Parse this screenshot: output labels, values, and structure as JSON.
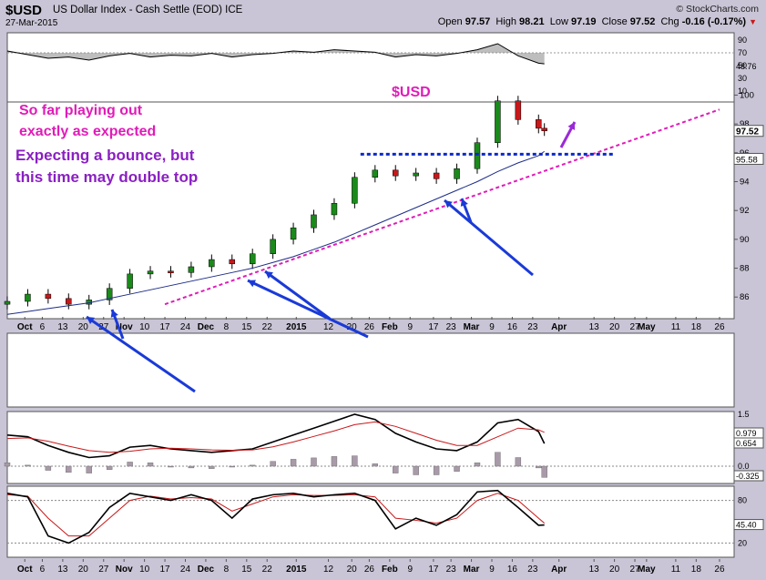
{
  "header": {
    "symbol": "$USD",
    "description": "US Dollar Index - Cash Settle (EOD) ICE",
    "date": "27-Mar-2015",
    "brand": "© StockCharts.com",
    "open_label": "Open",
    "open": "97.57",
    "high_label": "High",
    "high": "98.21",
    "low_label": "Low",
    "low": "97.19",
    "close_label": "Close",
    "close": "97.52",
    "chg_label": "Chg",
    "chg": "-0.16 (-0.17%)"
  },
  "annotations": {
    "title": "$USD",
    "line1": "So far playing out",
    "line2": "exactly as expected",
    "line3": "Expecting a bounce, but",
    "line4": "this time may double top"
  },
  "colors": {
    "background": "#c9c5d6",
    "panel": "#ffffff",
    "candle_up": "#1a8a1a",
    "candle_down": "#c8181a",
    "ma": "#1c2c88",
    "trendline": "#e01cb8",
    "support": "#0a28c8",
    "arrows": "#1a3ad8",
    "up_arrow": "#9a2ad8",
    "macd": "#000000",
    "signal": "#c8181a",
    "histogram": "#a89aa8"
  },
  "chart_data": [
    {
      "type": "line",
      "name": "rsi-panel",
      "yticks": [
        90,
        70,
        50,
        30,
        10
      ],
      "ylim": [
        10,
        100
      ],
      "current_label": "48.76",
      "x": [
        "2014-09-24",
        "2014-10-01",
        "2014-10-08",
        "2014-10-15",
        "2014-10-22",
        "2014-10-29",
        "2014-11-05",
        "2014-11-12",
        "2014-11-19",
        "2014-11-26",
        "2014-12-03",
        "2014-12-10",
        "2014-12-17",
        "2014-12-24",
        "2014-12-31",
        "2015-01-07",
        "2015-01-14",
        "2015-01-21",
        "2015-01-28",
        "2015-02-04",
        "2015-02-11",
        "2015-02-18",
        "2015-02-25",
        "2015-03-04",
        "2015-03-11",
        "2015-03-18",
        "2015-03-25",
        "2015-03-27"
      ],
      "values": [
        70,
        64,
        58,
        60,
        55,
        62,
        66,
        60,
        63,
        62,
        66,
        60,
        64,
        66,
        70,
        68,
        72,
        70,
        68,
        60,
        64,
        62,
        66,
        72,
        82,
        62,
        50,
        48.76
      ]
    },
    {
      "type": "candlestick",
      "name": "price",
      "yticks": [
        86,
        88,
        90,
        92,
        94,
        96,
        98,
        100
      ],
      "ylim": [
        84.5,
        102.3
      ],
      "price_labels": [
        "97.52",
        "95.58"
      ],
      "xtick_labels": [
        "Oct",
        "6",
        "13",
        "20",
        "27",
        "Nov",
        "10",
        "17",
        "24",
        "Dec",
        "8",
        "15",
        "22",
        "2015",
        "12",
        "20",
        "26",
        "Feb",
        "9",
        "17",
        "23",
        "Mar",
        "9",
        "16",
        "23",
        "Apr",
        "13",
        "20",
        "27",
        "May",
        "11",
        "18",
        "26"
      ],
      "x": [
        "2014-09-24",
        "2014-10-01",
        "2014-10-08",
        "2014-10-15",
        "2014-10-22",
        "2014-10-29",
        "2014-11-05",
        "2014-11-12",
        "2014-11-19",
        "2014-11-26",
        "2014-12-03",
        "2014-12-10",
        "2014-12-17",
        "2014-12-24",
        "2014-12-31",
        "2015-01-07",
        "2015-01-14",
        "2015-01-21",
        "2015-01-28",
        "2015-02-04",
        "2015-02-11",
        "2015-02-18",
        "2015-02-25",
        "2015-03-04",
        "2015-03-11",
        "2015-03-18",
        "2015-03-25",
        "2015-03-27"
      ],
      "close": [
        85.7,
        86.2,
        85.9,
        85.5,
        85.8,
        86.6,
        87.6,
        87.8,
        87.7,
        88.1,
        88.6,
        88.3,
        89.0,
        90.0,
        90.8,
        91.7,
        92.5,
        94.3,
        94.8,
        94.4,
        94.6,
        94.2,
        94.9,
        96.7,
        99.6,
        98.3,
        97.7,
        97.52
      ],
      "ma": [
        84.8,
        85.0,
        85.2,
        85.4,
        85.6,
        85.9,
        86.2,
        86.5,
        86.8,
        87.1,
        87.4,
        87.7,
        88.0,
        88.4,
        88.8,
        89.3,
        89.8,
        90.4,
        91.0,
        91.6,
        92.2,
        92.8,
        93.4,
        94.0,
        94.7,
        95.3,
        95.8,
        96.1
      ],
      "trendline": [
        [
          "2014-11-17",
          85.5
        ],
        [
          "2015-05-26",
          99.0
        ]
      ],
      "support": [
        [
          "2015-01-23",
          95.9
        ],
        [
          "2015-04-20",
          95.9
        ]
      ]
    },
    {
      "type": "line",
      "name": "macd",
      "yticks": [
        1.5,
        0.0
      ],
      "labels": [
        "0.979",
        "0.654",
        "-0.325"
      ],
      "x": [
        "2014-09-24",
        "2014-10-01",
        "2014-10-08",
        "2014-10-15",
        "2014-10-22",
        "2014-10-29",
        "2014-11-05",
        "2014-11-12",
        "2014-11-19",
        "2014-11-26",
        "2014-12-03",
        "2014-12-10",
        "2014-12-17",
        "2014-12-24",
        "2014-12-31",
        "2015-01-07",
        "2015-01-14",
        "2015-01-21",
        "2015-01-28",
        "2015-02-04",
        "2015-02-11",
        "2015-02-18",
        "2015-02-25",
        "2015-03-04",
        "2015-03-11",
        "2015-03-18",
        "2015-03-25",
        "2015-03-27"
      ],
      "macd": [
        0.9,
        0.85,
        0.6,
        0.4,
        0.25,
        0.3,
        0.55,
        0.6,
        0.5,
        0.45,
        0.4,
        0.45,
        0.5,
        0.7,
        0.9,
        1.1,
        1.3,
        1.5,
        1.35,
        0.95,
        0.7,
        0.5,
        0.45,
        0.7,
        1.25,
        1.35,
        1.0,
        0.654
      ],
      "signal": [
        0.8,
        0.82,
        0.72,
        0.58,
        0.45,
        0.4,
        0.43,
        0.5,
        0.52,
        0.5,
        0.47,
        0.46,
        0.47,
        0.56,
        0.7,
        0.86,
        1.02,
        1.2,
        1.28,
        1.15,
        0.95,
        0.75,
        0.6,
        0.6,
        0.85,
        1.1,
        1.05,
        0.979
      ]
    },
    {
      "type": "line",
      "name": "stochastic",
      "yticks": [
        80,
        20
      ],
      "current_label": "45.40",
      "x": [
        "2014-09-24",
        "2014-10-01",
        "2014-10-08",
        "2014-10-15",
        "2014-10-22",
        "2014-10-29",
        "2014-11-05",
        "2014-11-12",
        "2014-11-19",
        "2014-11-26",
        "2014-12-03",
        "2014-12-10",
        "2014-12-17",
        "2014-12-24",
        "2014-12-31",
        "2015-01-07",
        "2015-01-14",
        "2015-01-21",
        "2015-01-28",
        "2015-02-04",
        "2015-02-11",
        "2015-02-18",
        "2015-02-25",
        "2015-03-04",
        "2015-03-11",
        "2015-03-18",
        "2015-03-25",
        "2015-03-27"
      ],
      "k": [
        90,
        85,
        30,
        20,
        35,
        70,
        90,
        85,
        80,
        88,
        80,
        55,
        82,
        88,
        90,
        85,
        88,
        90,
        80,
        40,
        55,
        45,
        60,
        92,
        94,
        70,
        45,
        45.4
      ],
      "d": [
        88,
        86,
        55,
        30,
        30,
        55,
        80,
        86,
        82,
        84,
        82,
        65,
        75,
        85,
        88,
        87,
        87,
        88,
        85,
        55,
        52,
        48,
        55,
        80,
        90,
        80,
        55,
        48
      ]
    }
  ]
}
